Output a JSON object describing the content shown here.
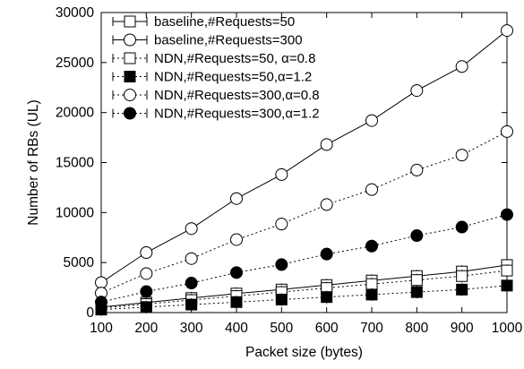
{
  "chart_data": {
    "type": "line",
    "xlabel": "Packet size (bytes)",
    "ylabel": "Number of RBs (UL)",
    "x": [
      100,
      200,
      300,
      400,
      500,
      600,
      700,
      800,
      900,
      1000
    ],
    "xlim": [
      100,
      1000
    ],
    "ylim": [
      0,
      30000
    ],
    "xticks": [
      100,
      200,
      300,
      400,
      500,
      600,
      700,
      800,
      900,
      1000
    ],
    "yticks": [
      0,
      5000,
      10000,
      15000,
      20000,
      25000,
      30000
    ],
    "grid": false,
    "legend_position": "top-left",
    "series": [
      {
        "name": "baseline,#Requests=50",
        "marker": "square-open",
        "line": "solid",
        "values": [
          550,
          1000,
          1450,
          1900,
          2300,
          2750,
          3200,
          3650,
          4100,
          4750
        ]
      },
      {
        "name": "baseline,#Requests=300",
        "marker": "circle-open",
        "line": "solid",
        "values": [
          3000,
          6000,
          8400,
          11400,
          13800,
          16800,
          19200,
          22200,
          24600,
          28200
        ]
      },
      {
        "name": "NDN,#Requests=50, α=0.8",
        "marker": "square-open",
        "line": "dotted",
        "values": [
          450,
          850,
          1250,
          1650,
          2050,
          2450,
          2850,
          3250,
          3650,
          4200
        ]
      },
      {
        "name": "NDN,#Requests=50,α=1.2",
        "marker": "square-filled",
        "line": "dotted",
        "values": [
          300,
          550,
          800,
          1050,
          1300,
          1550,
          1800,
          2050,
          2300,
          2700
        ]
      },
      {
        "name": "NDN,#Requests=300,α=0.8",
        "marker": "circle-open",
        "line": "dotted",
        "values": [
          1950,
          3900,
          5400,
          7300,
          8850,
          10800,
          12300,
          14250,
          15750,
          18100
        ]
      },
      {
        "name": "NDN,#Requests=300,α=1.2",
        "marker": "circle-filled",
        "line": "dotted",
        "values": [
          1050,
          2100,
          2950,
          4000,
          4800,
          5850,
          6650,
          7700,
          8550,
          9800
        ]
      }
    ]
  }
}
